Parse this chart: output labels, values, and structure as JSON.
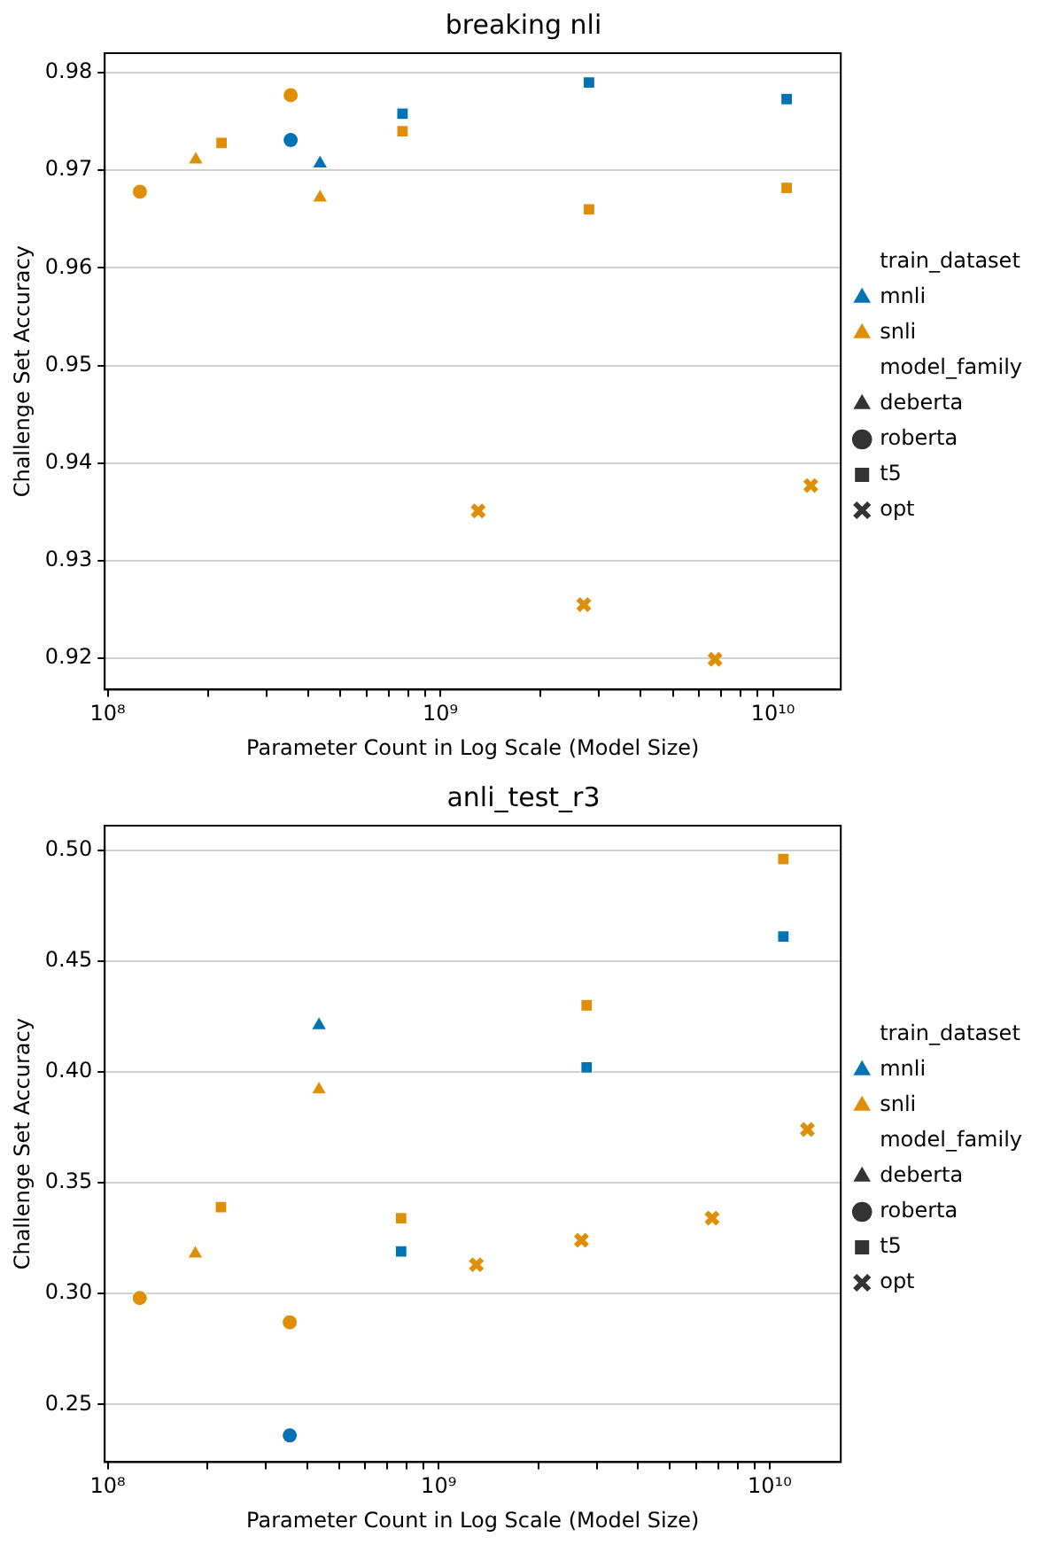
{
  "chart_data": [
    {
      "type": "scatter",
      "title": "breaking nli",
      "xlabel": "Parameter Count in Log Scale (Model Size)",
      "ylabel": "Challenge Set Accuracy",
      "log": "x",
      "grid": "y",
      "legend": "right",
      "xlim": [
        98000000,
        16000000000
      ],
      "xticks": [
        {
          "value": 100000000,
          "label": "10⁸"
        },
        {
          "value": 200000000,
          "label": null
        },
        {
          "value": 300000000,
          "label": null
        },
        {
          "value": 400000000,
          "label": null
        },
        {
          "value": 500000000,
          "label": null
        },
        {
          "value": 600000000,
          "label": null
        },
        {
          "value": 700000000,
          "label": null
        },
        {
          "value": 800000000,
          "label": null
        },
        {
          "value": 900000000,
          "label": null
        },
        {
          "value": 1000000000,
          "label": "10⁹"
        },
        {
          "value": 2000000000,
          "label": null
        },
        {
          "value": 3000000000,
          "label": null
        },
        {
          "value": 4000000000,
          "label": null
        },
        {
          "value": 5000000000,
          "label": null
        },
        {
          "value": 6000000000,
          "label": null
        },
        {
          "value": 7000000000,
          "label": null
        },
        {
          "value": 8000000000,
          "label": null
        },
        {
          "value": 9000000000,
          "label": null
        },
        {
          "value": 10000000000,
          "label": "10¹⁰"
        }
      ],
      "ylim": [
        0.9168,
        0.982
      ],
      "yticks": [
        0.92,
        0.93,
        0.94,
        0.95,
        0.96,
        0.97,
        0.98
      ],
      "series": [
        {
          "color": "#0173b2",
          "marker": "triangle",
          "x": [
            435000000
          ],
          "values": [
            0.9707
          ]
        },
        {
          "color": "#0173b2",
          "marker": "circle",
          "x": [
            355000000
          ],
          "values": [
            0.9731
          ]
        },
        {
          "color": "#0173b2",
          "marker": "square",
          "x": [
            770000000,
            2800000000,
            11000000000
          ],
          "values": [
            0.9758,
            0.979,
            0.9773
          ]
        },
        {
          "color": "#de8f05",
          "marker": "triangle",
          "x": [
            184000000,
            435000000
          ],
          "values": [
            0.9711,
            0.9672
          ]
        },
        {
          "color": "#de8f05",
          "marker": "circle",
          "x": [
            125000000,
            355000000
          ],
          "values": [
            0.9678,
            0.9777
          ]
        },
        {
          "color": "#de8f05",
          "marker": "square",
          "x": [
            220000000,
            770000000,
            2800000000,
            11000000000
          ],
          "values": [
            0.9728,
            0.974,
            0.966,
            0.9682
          ]
        },
        {
          "color": "#de8f05",
          "marker": "cross",
          "x": [
            1300000000,
            2700000000,
            6700000000,
            13000000000
          ],
          "values": [
            0.9351,
            0.9255,
            0.9199,
            0.9377
          ]
        },
        {
          "name": "train_dataset",
          "marker": "none"
        },
        {
          "name": "mnli",
          "color": "#0173b2",
          "marker": "triangle"
        },
        {
          "name": "snli",
          "color": "#de8f05",
          "marker": "triangle"
        },
        {
          "name": "model_family",
          "marker": "none"
        },
        {
          "name": "deberta",
          "color": "#333333",
          "marker": "triangle"
        },
        {
          "name": "roberta",
          "color": "#333333",
          "marker": "circle"
        },
        {
          "name": "t5",
          "color": "#333333",
          "marker": "square"
        },
        {
          "name": "opt",
          "color": "#333333",
          "marker": "cross"
        }
      ]
    },
    {
      "type": "scatter",
      "title": "anli_test_r3",
      "xlabel": "Parameter Count in Log Scale (Model Size)",
      "ylabel": "Challenge Set Accuracy",
      "log": "x",
      "grid": "y",
      "legend": "right",
      "xlim": [
        98000000,
        16400000000
      ],
      "xticks": [
        {
          "value": 100000000,
          "label": "10⁸"
        },
        {
          "value": 200000000,
          "label": null
        },
        {
          "value": 300000000,
          "label": null
        },
        {
          "value": 400000000,
          "label": null
        },
        {
          "value": 500000000,
          "label": null
        },
        {
          "value": 600000000,
          "label": null
        },
        {
          "value": 700000000,
          "label": null
        },
        {
          "value": 800000000,
          "label": null
        },
        {
          "value": 900000000,
          "label": null
        },
        {
          "value": 1000000000,
          "label": "10⁹"
        },
        {
          "value": 2000000000,
          "label": null
        },
        {
          "value": 3000000000,
          "label": null
        },
        {
          "value": 4000000000,
          "label": null
        },
        {
          "value": 5000000000,
          "label": null
        },
        {
          "value": 6000000000,
          "label": null
        },
        {
          "value": 7000000000,
          "label": null
        },
        {
          "value": 8000000000,
          "label": null
        },
        {
          "value": 9000000000,
          "label": null
        },
        {
          "value": 10000000000,
          "label": "10¹⁰"
        }
      ],
      "ylim": [
        0.224,
        0.511
      ],
      "yticks": [
        0.25,
        {
          "value": 0.3,
          "label": "0.30"
        },
        0.35,
        {
          "value": 0.4,
          "label": "0.40"
        },
        0.45,
        {
          "value": 0.5,
          "label": "0.50"
        }
      ],
      "series": [
        {
          "color": "#0173b2",
          "marker": "triangle",
          "x": [
            435000000
          ],
          "values": [
            0.421
          ]
        },
        {
          "color": "#0173b2",
          "marker": "circle",
          "x": [
            355000000
          ],
          "values": [
            0.236
          ]
        },
        {
          "color": "#0173b2",
          "marker": "square",
          "x": [
            770000000,
            2800000000,
            11000000000
          ],
          "values": [
            0.319,
            0.402,
            0.461
          ]
        },
        {
          "color": "#de8f05",
          "marker": "triangle",
          "x": [
            184000000,
            435000000
          ],
          "values": [
            0.318,
            0.392
          ]
        },
        {
          "color": "#de8f05",
          "marker": "circle",
          "x": [
            125000000,
            355000000
          ],
          "values": [
            0.298,
            0.287
          ]
        },
        {
          "color": "#de8f05",
          "marker": "square",
          "x": [
            220000000,
            770000000,
            2800000000,
            11000000000
          ],
          "values": [
            0.339,
            0.334,
            0.43,
            0.496
          ]
        },
        {
          "color": "#de8f05",
          "marker": "cross",
          "x": [
            1300000000,
            2700000000,
            6700000000,
            13000000000
          ],
          "values": [
            0.313,
            0.324,
            0.334,
            0.374
          ]
        },
        {
          "name": "train_dataset",
          "marker": "none"
        },
        {
          "name": "mnli",
          "color": "#0173b2",
          "marker": "triangle"
        },
        {
          "name": "snli",
          "color": "#de8f05",
          "marker": "triangle"
        },
        {
          "name": "model_family",
          "marker": "none"
        },
        {
          "name": "deberta",
          "color": "#333333",
          "marker": "triangle"
        },
        {
          "name": "roberta",
          "color": "#333333",
          "marker": "circle"
        },
        {
          "name": "t5",
          "color": "#333333",
          "marker": "square"
        },
        {
          "name": "opt",
          "color": "#333333",
          "marker": "cross"
        }
      ]
    }
  ]
}
